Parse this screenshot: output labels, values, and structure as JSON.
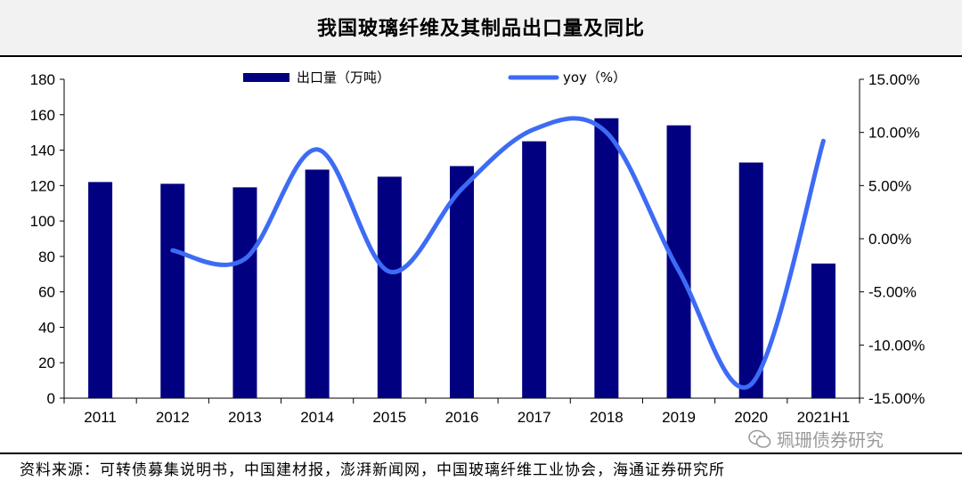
{
  "title": "我国玻璃纤维及其制品出口量及同比",
  "source_note": "资料来源：可转债募集说明书，中国建材报，澎湃新闻网，中国玻璃纤维工业协会，海通证券研究所",
  "watermark": "珮珊债券研究",
  "colors": {
    "bar": "#000080",
    "line": "#3d6bf5",
    "title_band": "#f2f2f2"
  },
  "chart_data": {
    "type": "bar",
    "categories": [
      "2011",
      "2012",
      "2013",
      "2014",
      "2015",
      "2016",
      "2017",
      "2018",
      "2019",
      "2020",
      "2021H1"
    ],
    "series": [
      {
        "name": "出口量（万吨）",
        "type": "bar",
        "axis": "left",
        "values": [
          122,
          121,
          119,
          129,
          125,
          131,
          145,
          158,
          154,
          133,
          76
        ]
      },
      {
        "name": "yoy（%）",
        "type": "line",
        "axis": "right",
        "smooth": true,
        "values": [
          null,
          -1.1,
          -1.9,
          8.4,
          -3.1,
          4.7,
          10.3,
          10.0,
          -3.0,
          -13.7,
          9.2
        ]
      }
    ],
    "ylim": [
      0,
      180
    ],
    "yticks": [
      "0",
      "20",
      "40",
      "60",
      "80",
      "100",
      "120",
      "140",
      "160",
      "180"
    ],
    "y2lim": [
      -15,
      15
    ],
    "y2ticks": [
      "-15.00%",
      "-10.00%",
      "-5.00%",
      "0.00%",
      "5.00%",
      "10.00%",
      "15.00%"
    ],
    "grid": false,
    "legend_position": "top"
  }
}
